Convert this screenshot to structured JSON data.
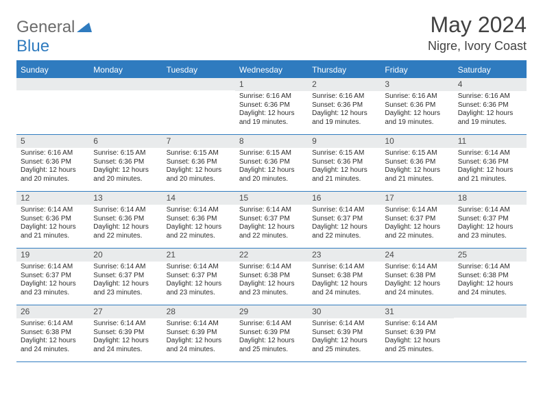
{
  "brand": {
    "line1": "General",
    "line2": "Blue"
  },
  "colors": {
    "accent": "#2f7bbf",
    "header_text": "#ffffff",
    "body_text": "#2b2b2b",
    "daybar_bg": "#e9ebec",
    "title_text": "#414141",
    "logo_gray": "#6b6b6b"
  },
  "title": "May 2024",
  "location": "Nigre, Ivory Coast",
  "day_names": [
    "Sunday",
    "Monday",
    "Tuesday",
    "Wednesday",
    "Thursday",
    "Friday",
    "Saturday"
  ],
  "weeks": [
    [
      null,
      null,
      null,
      {
        "n": "1",
        "sr": "6:16 AM",
        "ss": "6:36 PM",
        "dl": "12 hours and 19 minutes."
      },
      {
        "n": "2",
        "sr": "6:16 AM",
        "ss": "6:36 PM",
        "dl": "12 hours and 19 minutes."
      },
      {
        "n": "3",
        "sr": "6:16 AM",
        "ss": "6:36 PM",
        "dl": "12 hours and 19 minutes."
      },
      {
        "n": "4",
        "sr": "6:16 AM",
        "ss": "6:36 PM",
        "dl": "12 hours and 19 minutes."
      }
    ],
    [
      {
        "n": "5",
        "sr": "6:16 AM",
        "ss": "6:36 PM",
        "dl": "12 hours and 20 minutes."
      },
      {
        "n": "6",
        "sr": "6:15 AM",
        "ss": "6:36 PM",
        "dl": "12 hours and 20 minutes."
      },
      {
        "n": "7",
        "sr": "6:15 AM",
        "ss": "6:36 PM",
        "dl": "12 hours and 20 minutes."
      },
      {
        "n": "8",
        "sr": "6:15 AM",
        "ss": "6:36 PM",
        "dl": "12 hours and 20 minutes."
      },
      {
        "n": "9",
        "sr": "6:15 AM",
        "ss": "6:36 PM",
        "dl": "12 hours and 21 minutes."
      },
      {
        "n": "10",
        "sr": "6:15 AM",
        "ss": "6:36 PM",
        "dl": "12 hours and 21 minutes."
      },
      {
        "n": "11",
        "sr": "6:14 AM",
        "ss": "6:36 PM",
        "dl": "12 hours and 21 minutes."
      }
    ],
    [
      {
        "n": "12",
        "sr": "6:14 AM",
        "ss": "6:36 PM",
        "dl": "12 hours and 21 minutes."
      },
      {
        "n": "13",
        "sr": "6:14 AM",
        "ss": "6:36 PM",
        "dl": "12 hours and 22 minutes."
      },
      {
        "n": "14",
        "sr": "6:14 AM",
        "ss": "6:36 PM",
        "dl": "12 hours and 22 minutes."
      },
      {
        "n": "15",
        "sr": "6:14 AM",
        "ss": "6:37 PM",
        "dl": "12 hours and 22 minutes."
      },
      {
        "n": "16",
        "sr": "6:14 AM",
        "ss": "6:37 PM",
        "dl": "12 hours and 22 minutes."
      },
      {
        "n": "17",
        "sr": "6:14 AM",
        "ss": "6:37 PM",
        "dl": "12 hours and 22 minutes."
      },
      {
        "n": "18",
        "sr": "6:14 AM",
        "ss": "6:37 PM",
        "dl": "12 hours and 23 minutes."
      }
    ],
    [
      {
        "n": "19",
        "sr": "6:14 AM",
        "ss": "6:37 PM",
        "dl": "12 hours and 23 minutes."
      },
      {
        "n": "20",
        "sr": "6:14 AM",
        "ss": "6:37 PM",
        "dl": "12 hours and 23 minutes."
      },
      {
        "n": "21",
        "sr": "6:14 AM",
        "ss": "6:37 PM",
        "dl": "12 hours and 23 minutes."
      },
      {
        "n": "22",
        "sr": "6:14 AM",
        "ss": "6:38 PM",
        "dl": "12 hours and 23 minutes."
      },
      {
        "n": "23",
        "sr": "6:14 AM",
        "ss": "6:38 PM",
        "dl": "12 hours and 24 minutes."
      },
      {
        "n": "24",
        "sr": "6:14 AM",
        "ss": "6:38 PM",
        "dl": "12 hours and 24 minutes."
      },
      {
        "n": "25",
        "sr": "6:14 AM",
        "ss": "6:38 PM",
        "dl": "12 hours and 24 minutes."
      }
    ],
    [
      {
        "n": "26",
        "sr": "6:14 AM",
        "ss": "6:38 PM",
        "dl": "12 hours and 24 minutes."
      },
      {
        "n": "27",
        "sr": "6:14 AM",
        "ss": "6:39 PM",
        "dl": "12 hours and 24 minutes."
      },
      {
        "n": "28",
        "sr": "6:14 AM",
        "ss": "6:39 PM",
        "dl": "12 hours and 24 minutes."
      },
      {
        "n": "29",
        "sr": "6:14 AM",
        "ss": "6:39 PM",
        "dl": "12 hours and 25 minutes."
      },
      {
        "n": "30",
        "sr": "6:14 AM",
        "ss": "6:39 PM",
        "dl": "12 hours and 25 minutes."
      },
      {
        "n": "31",
        "sr": "6:14 AM",
        "ss": "6:39 PM",
        "dl": "12 hours and 25 minutes."
      },
      null
    ]
  ],
  "labels": {
    "sunrise": "Sunrise:",
    "sunset": "Sunset:",
    "daylight": "Daylight:"
  }
}
